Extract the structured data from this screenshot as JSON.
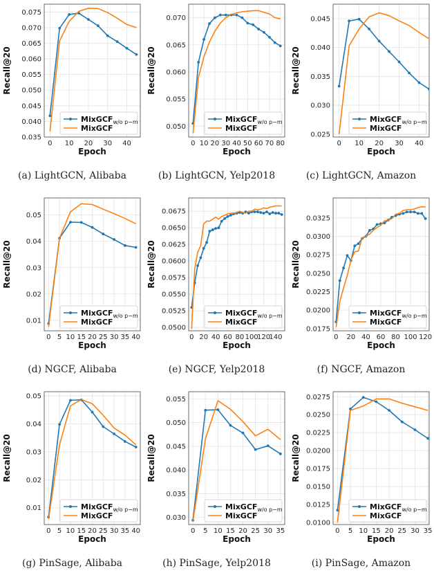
{
  "colors": {
    "ablation": "#1f77b4",
    "full": "#ff7f0e",
    "grid": "#e3e3e3"
  },
  "chart_data": [
    {
      "type": "line",
      "caption": "(a) LightGCN, Alibaba",
      "xlabel": "Epoch",
      "ylabel": "Recall@20",
      "xlim": [
        -3,
        47
      ],
      "ylim": [
        0.035,
        0.0775
      ],
      "xticks": [
        0,
        10,
        20,
        30,
        40
      ],
      "yticks": [
        0.035,
        0.04,
        0.045,
        0.05,
        0.055,
        0.06,
        0.065,
        0.07,
        0.075
      ],
      "ytick_labels": [
        "0.035",
        "0.040",
        "0.045",
        "0.050",
        "0.055",
        "0.060",
        "0.065",
        "0.070",
        "0.075"
      ],
      "legend": "bottom-right",
      "series": [
        {
          "name": "MixGCF",
          "name_sub": "w/o p−m",
          "color": "ablation",
          "marker": true,
          "x": [
            0,
            5,
            10,
            15,
            20,
            25,
            30,
            35,
            40,
            45
          ],
          "y": [
            0.0418,
            0.0698,
            0.0742,
            0.0746,
            0.0726,
            0.0706,
            0.0674,
            0.0655,
            0.0634,
            0.0614
          ]
        },
        {
          "name": "MixGCF",
          "color": "full",
          "marker": false,
          "x": [
            0,
            5,
            10,
            15,
            20,
            25,
            30,
            35,
            40,
            45
          ],
          "y": [
            0.0368,
            0.0657,
            0.072,
            0.0752,
            0.0762,
            0.0761,
            0.0748,
            0.073,
            0.071,
            0.07
          ]
        }
      ]
    },
    {
      "type": "line",
      "caption": "(b) LightGCN, Yelp2018",
      "xlabel": "Epoch",
      "ylabel": "Recall@20",
      "xlim": [
        -4,
        84
      ],
      "ylim": [
        0.048,
        0.0725
      ],
      "xticks": [
        0,
        10,
        20,
        30,
        40,
        50,
        60,
        70,
        80
      ],
      "yticks": [
        0.05,
        0.055,
        0.06,
        0.065,
        0.07
      ],
      "ytick_labels": [
        "0.050",
        "0.055",
        "0.060",
        "0.065",
        "0.070"
      ],
      "legend": "bottom-right",
      "series": [
        {
          "name": "MixGCF",
          "name_sub": "w/o p−m",
          "color": "ablation",
          "marker": true,
          "x": [
            0,
            5,
            10,
            15,
            20,
            25,
            30,
            35,
            40,
            45,
            50,
            55,
            60,
            65,
            70,
            75,
            80
          ],
          "y": [
            0.0505,
            0.0618,
            0.066,
            0.0689,
            0.07,
            0.0705,
            0.0705,
            0.0705,
            0.0705,
            0.07,
            0.069,
            0.0687,
            0.0679,
            0.0673,
            0.0664,
            0.0654,
            0.0648
          ]
        },
        {
          "name": "MixGCF",
          "color": "full",
          "marker": false,
          "x": [
            0,
            5,
            10,
            15,
            20,
            25,
            30,
            35,
            40,
            45,
            50,
            55,
            60,
            65,
            70,
            75,
            80
          ],
          "y": [
            0.0487,
            0.059,
            0.0628,
            0.0655,
            0.0675,
            0.069,
            0.07,
            0.0706,
            0.0709,
            0.0711,
            0.0712,
            0.0713,
            0.0713,
            0.071,
            0.0707,
            0.07,
            0.0698
          ]
        }
      ]
    },
    {
      "type": "line",
      "caption": "(c) LightGCN, Amazon",
      "xlabel": "Epoch",
      "ylabel": "Recall@20",
      "xlim": [
        -3,
        45
      ],
      "ylim": [
        0.0245,
        0.0475
      ],
      "xticks": [
        0,
        10,
        20,
        30,
        40
      ],
      "yticks": [
        0.025,
        0.03,
        0.035,
        0.04,
        0.045
      ],
      "ytick_labels": [
        "0.025",
        "0.030",
        "0.035",
        "0.040",
        "0.045"
      ],
      "legend": "bottom-right",
      "series": [
        {
          "name": "MixGCF",
          "name_sub": "w/o p−m",
          "color": "ablation",
          "marker": true,
          "x": [
            0,
            5,
            10,
            15,
            20,
            25,
            30,
            35,
            40,
            45
          ],
          "y": [
            0.0333,
            0.0446,
            0.0449,
            0.0432,
            0.0411,
            0.0393,
            0.0375,
            0.0356,
            0.0339,
            0.0328
          ]
        },
        {
          "name": "MixGCF",
          "color": "full",
          "marker": false,
          "x": [
            0,
            5,
            10,
            15,
            20,
            25,
            30,
            35,
            40,
            45
          ],
          "y": [
            0.025,
            0.0403,
            0.0432,
            0.0453,
            0.046,
            0.0455,
            0.0446,
            0.0438,
            0.0426,
            0.0415
          ]
        }
      ]
    },
    {
      "type": "line",
      "caption": "(d) NGCF, Alibaba",
      "xlabel": "Epoch",
      "ylabel": "Recall@20",
      "xlim": [
        -2,
        42
      ],
      "ylim": [
        0.006,
        0.0565
      ],
      "xticks": [
        0,
        5,
        10,
        15,
        20,
        25,
        30,
        35,
        40
      ],
      "yticks": [
        0.01,
        0.02,
        0.03,
        0.04,
        0.05
      ],
      "ytick_labels": [
        "0.01",
        "0.02",
        "0.03",
        "0.04",
        "0.05"
      ],
      "legend": "bottom-right",
      "series": [
        {
          "name": "MixGCF",
          "name_sub": "w/o p−m",
          "color": "ablation",
          "marker": true,
          "x": [
            0,
            5,
            10,
            15,
            20,
            25,
            30,
            35,
            40
          ],
          "y": [
            0.0088,
            0.0412,
            0.0473,
            0.0472,
            0.0453,
            0.0428,
            0.0407,
            0.0384,
            0.0377
          ]
        },
        {
          "name": "MixGCF",
          "color": "full",
          "marker": false,
          "x": [
            0,
            5,
            10,
            15,
            20,
            25,
            30,
            35,
            40
          ],
          "y": [
            0.0075,
            0.0412,
            0.0512,
            0.0543,
            0.054,
            0.0522,
            0.0505,
            0.0487,
            0.0467
          ]
        }
      ]
    },
    {
      "type": "line",
      "caption": "(e) NGCF, Yelp2018",
      "xlabel": "Epoch",
      "ylabel": "Recall@20",
      "xlim": [
        -5,
        155
      ],
      "ylim": [
        0.0495,
        0.0695
      ],
      "xticks": [
        0,
        20,
        40,
        60,
        80,
        100,
        120,
        140
      ],
      "yticks": [
        0.05,
        0.0525,
        0.055,
        0.0575,
        0.06,
        0.0625,
        0.065,
        0.0675
      ],
      "ytick_labels": [
        "0.0500",
        "0.0525",
        "0.0550",
        "0.0575",
        "0.0600",
        "0.0625",
        "0.0650",
        "0.0675"
      ],
      "legend": "bottom-right",
      "series": [
        {
          "name": "MixGCF",
          "name_sub": "w/o p−m",
          "color": "ablation",
          "marker": true,
          "x": [
            0,
            5,
            10,
            15,
            20,
            25,
            30,
            35,
            40,
            45,
            50,
            55,
            60,
            65,
            70,
            75,
            80,
            85,
            90,
            95,
            100,
            105,
            110,
            115,
            120,
            125,
            130,
            135,
            140,
            145,
            150
          ],
          "y": [
            0.053,
            0.0567,
            0.0593,
            0.0605,
            0.0619,
            0.0628,
            0.0645,
            0.0647,
            0.0649,
            0.065,
            0.066,
            0.0664,
            0.0667,
            0.0669,
            0.0671,
            0.0672,
            0.0673,
            0.0672,
            0.0674,
            0.0672,
            0.0674,
            0.0674,
            0.0674,
            0.0673,
            0.0672,
            0.0674,
            0.0671,
            0.0673,
            0.0672,
            0.0672,
            0.067
          ]
        },
        {
          "name": "MixGCF",
          "color": "full",
          "marker": false,
          "x": [
            0,
            5,
            10,
            15,
            20,
            25,
            30,
            35,
            40,
            45,
            50,
            55,
            60,
            65,
            70,
            75,
            80,
            85,
            90,
            95,
            100,
            105,
            110,
            115,
            120,
            125,
            130,
            135,
            140,
            145,
            150
          ],
          "y": [
            0.0498,
            0.0588,
            0.0613,
            0.0623,
            0.0656,
            0.066,
            0.066,
            0.0663,
            0.0666,
            0.0663,
            0.0667,
            0.0669,
            0.0671,
            0.0672,
            0.0672,
            0.0673,
            0.0675,
            0.0673,
            0.0672,
            0.0675,
            0.0675,
            0.0678,
            0.0677,
            0.0678,
            0.068,
            0.0679,
            0.0681,
            0.0682,
            0.0683,
            0.0683,
            0.0683
          ]
        }
      ]
    },
    {
      "type": "line",
      "caption": "(f) NGCF, Amazon",
      "xlabel": "Epoch",
      "ylabel": "Recall@20",
      "xlim": [
        -4,
        125
      ],
      "ylim": [
        0.0172,
        0.0352
      ],
      "xticks": [
        0,
        20,
        40,
        60,
        80,
        100,
        120
      ],
      "yticks": [
        0.0175,
        0.02,
        0.0225,
        0.025,
        0.0275,
        0.03,
        0.0325
      ],
      "ytick_labels": [
        "0.0175",
        "0.0200",
        "0.0225",
        "0.0250",
        "0.0275",
        "0.0300",
        "0.0325"
      ],
      "legend": "bottom-right",
      "series": [
        {
          "name": "MixGCF",
          "name_sub": "w/o p−m",
          "color": "ablation",
          "marker": true,
          "x": [
            0,
            5,
            10,
            15,
            20,
            25,
            30,
            35,
            40,
            45,
            50,
            55,
            60,
            65,
            70,
            75,
            80,
            85,
            90,
            95,
            100,
            105,
            110,
            115,
            120
          ],
          "y": [
            0.0184,
            0.024,
            0.0257,
            0.0274,
            0.0267,
            0.0287,
            0.029,
            0.0297,
            0.03,
            0.0308,
            0.031,
            0.0316,
            0.0317,
            0.0318,
            0.0322,
            0.0326,
            0.0328,
            0.033,
            0.0331,
            0.0333,
            0.0333,
            0.0333,
            0.0331,
            0.0331,
            0.0324
          ]
        },
        {
          "name": "MixGCF",
          "color": "full",
          "marker": false,
          "x": [
            0,
            5,
            10,
            15,
            20,
            25,
            30,
            35,
            40,
            45,
            50,
            55,
            60,
            65,
            70,
            75,
            80,
            85,
            90,
            95,
            100,
            105,
            110,
            115,
            120
          ],
          "y": [
            0.0177,
            0.0212,
            0.023,
            0.0247,
            0.0268,
            0.0279,
            0.028,
            0.0298,
            0.03,
            0.0303,
            0.0308,
            0.0312,
            0.0315,
            0.0321,
            0.0322,
            0.0324,
            0.033,
            0.0331,
            0.0335,
            0.0336,
            0.0336,
            0.0337,
            0.0339,
            0.034,
            0.034
          ]
        }
      ]
    },
    {
      "type": "line",
      "caption": "(g) PinSage, Alibaba",
      "xlabel": "Epoch",
      "ylabel": "Recall@20",
      "xlim": [
        -2,
        42
      ],
      "ylim": [
        0.004,
        0.0515
      ],
      "xticks": [
        0,
        5,
        10,
        15,
        20,
        25,
        30,
        35,
        40
      ],
      "yticks": [
        0.01,
        0.02,
        0.03,
        0.04,
        0.05
      ],
      "ytick_labels": [
        "0.01",
        "0.02",
        "0.03",
        "0.04",
        "0.05"
      ],
      "legend": "bottom-right",
      "series": [
        {
          "name": "MixGCF",
          "name_sub": "w/o p−m",
          "color": "ablation",
          "marker": true,
          "x": [
            0,
            5,
            10,
            15,
            20,
            25,
            30,
            35,
            40
          ],
          "y": [
            0.0067,
            0.0398,
            0.0484,
            0.0486,
            0.0442,
            0.039,
            0.0364,
            0.0337,
            0.0317
          ]
        },
        {
          "name": "MixGCF",
          "color": "full",
          "marker": false,
          "x": [
            0,
            5,
            10,
            15,
            20,
            25,
            30,
            35,
            40
          ],
          "y": [
            0.006,
            0.0325,
            0.0464,
            0.0487,
            0.0472,
            0.0431,
            0.0385,
            0.036,
            0.0325
          ]
        }
      ]
    },
    {
      "type": "line",
      "caption": "(h) PinSage, Yelp2018",
      "xlabel": "Epoch",
      "ylabel": "Recall@20",
      "xlim": [
        -1.7,
        36.7
      ],
      "ylim": [
        0.0285,
        0.0565
      ],
      "xticks": [
        0,
        5,
        10,
        15,
        20,
        25,
        30,
        35
      ],
      "yticks": [
        0.03,
        0.035,
        0.04,
        0.045,
        0.05,
        0.055
      ],
      "ytick_labels": [
        "0.030",
        "0.035",
        "0.040",
        "0.045",
        "0.050",
        "0.055"
      ],
      "legend": "bottom-right",
      "series": [
        {
          "name": "MixGCF",
          "name_sub": "w/o p−m",
          "color": "ablation",
          "marker": true,
          "x": [
            0,
            5,
            10,
            15,
            20,
            25,
            30,
            35
          ],
          "y": [
            0.0294,
            0.0526,
            0.0527,
            0.0494,
            0.0478,
            0.0443,
            0.0451,
            0.0434
          ]
        },
        {
          "name": "MixGCF",
          "color": "full",
          "marker": false,
          "x": [
            0,
            5,
            10,
            15,
            20,
            25,
            30,
            35
          ],
          "y": [
            0.0292,
            0.0466,
            0.0546,
            0.0528,
            0.0502,
            0.0472,
            0.0486,
            0.0464
          ]
        }
      ]
    },
    {
      "type": "line",
      "caption": "(i) PinSage, Amazon",
      "xlabel": "Epoch",
      "ylabel": "Recall@20",
      "xlim": [
        -1.7,
        35.5
      ],
      "ylim": [
        0.0097,
        0.0282
      ],
      "xticks": [
        0,
        5,
        10,
        15,
        20,
        25,
        30,
        35
      ],
      "yticks": [
        0.01,
        0.0125,
        0.015,
        0.0175,
        0.02,
        0.0225,
        0.025,
        0.0275
      ],
      "ytick_labels": [
        "0.0100",
        "0.0125",
        "0.0150",
        "0.0175",
        "0.0200",
        "0.0225",
        "0.0250",
        "0.0275"
      ],
      "legend": "bottom-right",
      "series": [
        {
          "name": "MixGCF",
          "name_sub": "w/o p−m",
          "color": "ablation",
          "marker": true,
          "x": [
            0,
            5,
            10,
            15,
            20,
            25,
            30,
            35
          ],
          "y": [
            0.0117,
            0.0258,
            0.0274,
            0.0268,
            0.0256,
            0.024,
            0.0229,
            0.0217
          ]
        },
        {
          "name": "MixGCF",
          "color": "full",
          "marker": false,
          "x": [
            0,
            5,
            10,
            15,
            20,
            25,
            30,
            35
          ],
          "y": [
            0.01,
            0.0256,
            0.0262,
            0.0272,
            0.0272,
            0.0266,
            0.0261,
            0.0256
          ]
        }
      ]
    }
  ]
}
